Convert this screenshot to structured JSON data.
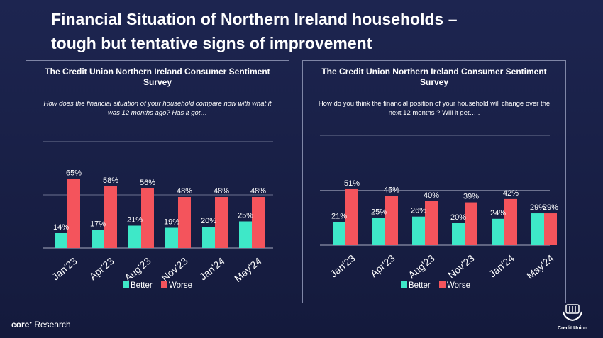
{
  "page": {
    "title_line1": "Financial Situation of Northern Ireland households –",
    "title_line2": "tough but tentative signs of improvement"
  },
  "footer": {
    "brand_bold": "core",
    "brand_rest": "Research",
    "logo_text": "Credit Union"
  },
  "colors": {
    "better": "#3ee8c8",
    "worse": "#f4545c",
    "background": "#161c42",
    "grid": "#8a8fa8"
  },
  "chart_data": [
    {
      "type": "bar",
      "title": "The Credit Union Northern Ireland Consumer Sentiment Survey",
      "question_pre": "How does the financial situation of your household compare now with what it was ",
      "question_underlined": "12 months ago",
      "question_post": "? Has it got…",
      "categories": [
        "Jan'23",
        "Apr'23",
        "Aug'23",
        "Nov'23",
        "Jan'24",
        "May'24"
      ],
      "series": [
        {
          "name": "Better",
          "values": [
            14,
            17,
            21,
            19,
            20,
            25
          ],
          "labels": [
            "14%",
            "17%",
            "21%",
            "19%",
            "20%",
            "25%"
          ]
        },
        {
          "name": "Worse",
          "values": [
            65,
            58,
            56,
            48,
            48,
            48
          ],
          "labels": [
            "65%",
            "58%",
            "56%",
            "48%",
            "48%",
            "48%"
          ]
        }
      ],
      "ylim": [
        0,
        100
      ],
      "legend_position": "bottom"
    },
    {
      "type": "bar",
      "title": "The Credit Union Northern Ireland Consumer Sentiment Survey",
      "question_pre": "How do you think the financial position of your household will change over the next  12 months ? Will it get…..",
      "question_underlined": "",
      "question_post": "",
      "categories": [
        "Jan'23",
        "Apr'23",
        "Aug'23",
        "Nov'23",
        "Jan'24",
        "May'24"
      ],
      "series": [
        {
          "name": "Better",
          "values": [
            21,
            25,
            26,
            20,
            24,
            29
          ],
          "labels": [
            "21%",
            "25%",
            "26%",
            "20%",
            "24%",
            "29%"
          ]
        },
        {
          "name": "Worse",
          "values": [
            51,
            45,
            40,
            39,
            42,
            29
          ],
          "labels": [
            "51%",
            "45%",
            "40%",
            "39%",
            "42%",
            "29%"
          ]
        }
      ],
      "ylim": [
        0,
        100
      ],
      "legend_position": "bottom"
    }
  ]
}
